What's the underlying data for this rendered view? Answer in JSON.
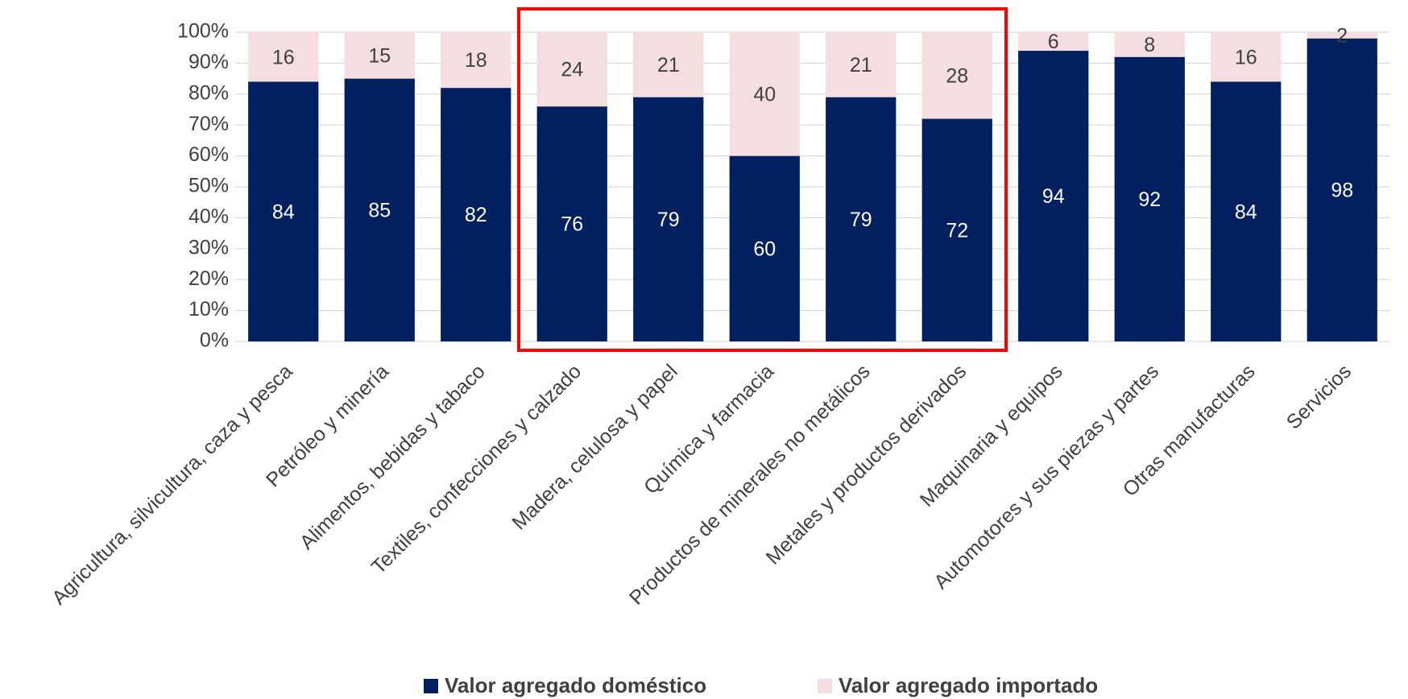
{
  "chart_data": {
    "type": "stacked_bar",
    "categories": [
      "Agricultura, silvicultura, caza y pesca",
      "Petróleo y minería",
      "Alimentos, bebidas y tabaco",
      "Textiles, confecciones y calzado",
      "Madera, celulosa y papel",
      "Química y farmacia",
      "Productos de minerales no metálicos",
      "Metales y productos derivados",
      "Maquinaria y equipos",
      "Automotores y sus piezas y partes",
      "Otras manufacturas",
      "Servicios"
    ],
    "series": [
      {
        "name": "Valor agregado doméstico",
        "color": "#002060",
        "values": [
          84,
          85,
          82,
          76,
          79,
          60,
          79,
          72,
          94,
          92,
          84,
          98
        ]
      },
      {
        "name": "Valor agregado importado",
        "color": "#f5dedf",
        "values": [
          16,
          15,
          18,
          24,
          21,
          40,
          21,
          28,
          6,
          8,
          16,
          2
        ]
      }
    ],
    "ylim": [
      0,
      100
    ],
    "yticks": [
      {
        "value": 0,
        "label": "0%"
      },
      {
        "value": 10,
        "label": "10%"
      },
      {
        "value": 20,
        "label": "20%"
      },
      {
        "value": 30,
        "label": "30%"
      },
      {
        "value": 40,
        "label": "40%"
      },
      {
        "value": 50,
        "label": "50%"
      },
      {
        "value": 60,
        "label": "60%"
      },
      {
        "value": 70,
        "label": "70%"
      },
      {
        "value": 80,
        "label": "80%"
      },
      {
        "value": 90,
        "label": "90%"
      },
      {
        "value": 100,
        "label": "100%"
      }
    ],
    "grid": true,
    "legend": "bottom"
  }
}
